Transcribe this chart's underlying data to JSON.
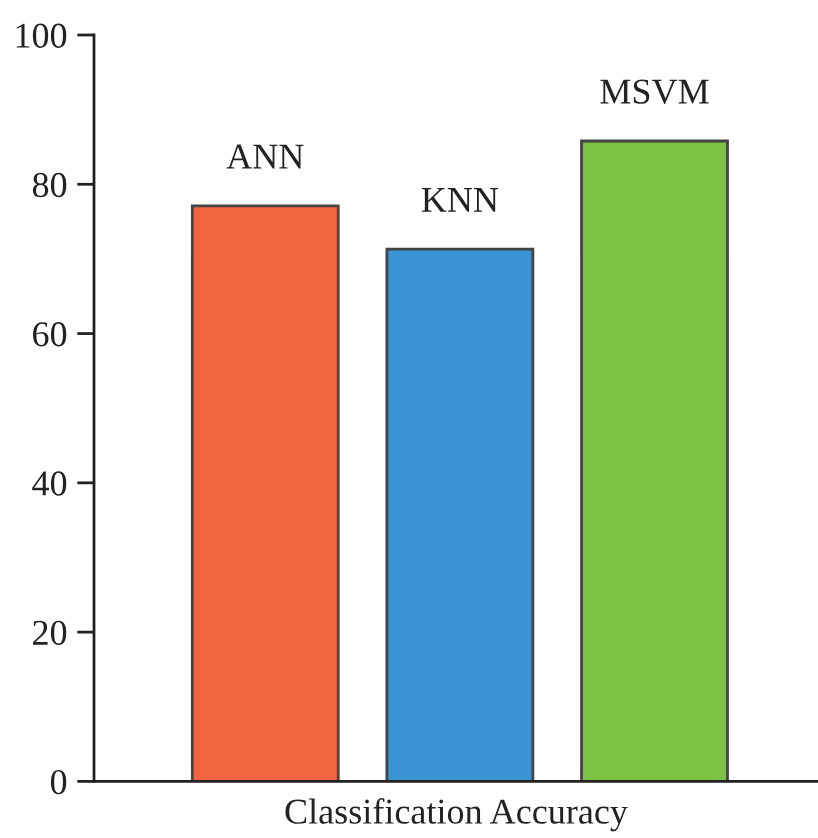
{
  "chart_data": {
    "type": "bar",
    "xlabel": "Classification Accuracy",
    "categories": [
      "ANN",
      "KNN",
      "MSVM"
    ],
    "values": [
      77.1,
      71.3,
      85.8
    ],
    "colors": [
      "#f16541",
      "#3a94d3",
      "#7bc142"
    ],
    "ylim": [
      0,
      100
    ],
    "yticks": [
      0,
      20,
      40,
      60,
      80,
      100
    ],
    "grid": false,
    "legend": false
  }
}
